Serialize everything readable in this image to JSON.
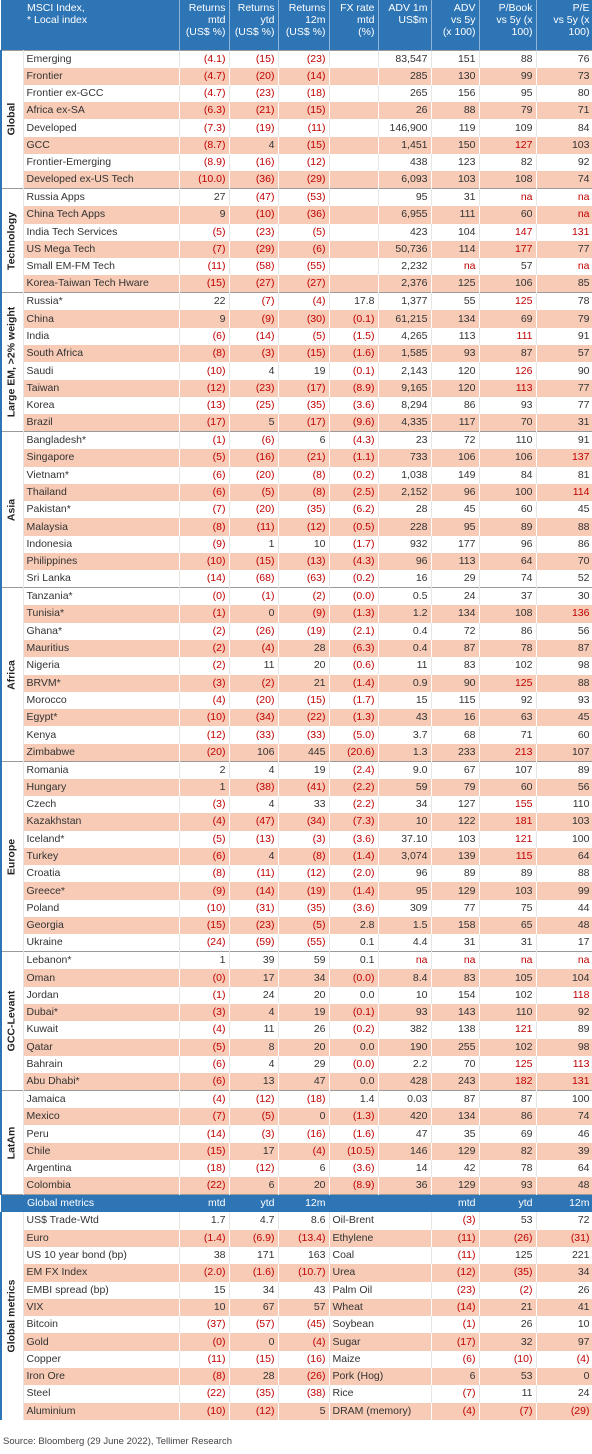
{
  "header": {
    "columns": [
      [
        "MSCI Index,",
        "* Local index"
      ],
      [
        "Returns",
        "mtd",
        "(US$ %)"
      ],
      [
        "Returns",
        "ytd",
        "(US$ %)"
      ],
      [
        "Returns",
        "12m",
        "(US$ %)"
      ],
      [
        "FX rate",
        "mtd",
        "(%)"
      ],
      [
        "ADV 1m",
        "US$m"
      ],
      [
        "ADV",
        "vs 5y",
        "(x 100)"
      ],
      [
        "P/Book",
        "vs 5y (x",
        "100)"
      ],
      [
        "P/E",
        "vs 5y (x",
        "100)"
      ]
    ]
  },
  "groups": [
    {
      "label": "Global",
      "rows": [
        [
          "Emerging",
          "(4.1)",
          "(15)",
          "(23)",
          null,
          "83,547",
          "151",
          "88",
          "76"
        ],
        [
          "Frontier",
          "(4.7)",
          "(20)",
          "(14)",
          null,
          "285",
          "130",
          "99",
          "73"
        ],
        [
          "Frontier ex-GCC",
          "(4.7)",
          "(23)",
          "(18)",
          null,
          "265",
          "156",
          "95",
          "80"
        ],
        [
          "Africa ex-SA",
          "(6.3)",
          "(21)",
          "(15)",
          null,
          "26",
          "88",
          "79",
          "71"
        ],
        [
          "Developed",
          "(7.3)",
          "(19)",
          "(11)",
          null,
          "146,900",
          "119",
          "109",
          "84"
        ],
        [
          "GCC",
          "(8.7)",
          "4",
          "(15)",
          null,
          "1,451",
          "150",
          "127",
          "103"
        ],
        [
          "Frontier-Emerging",
          "(8.9)",
          "(16)",
          "(12)",
          null,
          "438",
          "123",
          "82",
          "92"
        ],
        [
          "Developed ex-US Tech",
          "(10.0)",
          "(36)",
          "(29)",
          null,
          "6,093",
          "103",
          "108",
          "74"
        ]
      ]
    },
    {
      "label": "Technology",
      "rows": [
        [
          "Russia Apps",
          "27",
          "(47)",
          "(53)",
          null,
          "95",
          "31",
          "na",
          "na"
        ],
        [
          "China Tech Apps",
          "9",
          "(10)",
          "(36)",
          null,
          "6,955",
          "111",
          "60",
          "na"
        ],
        [
          "India Tech Services",
          "(5)",
          "(23)",
          "(5)",
          null,
          "423",
          "104",
          "147",
          "131"
        ],
        [
          "US Mega Tech",
          "(7)",
          "(29)",
          "(6)",
          null,
          "50,736",
          "114",
          "177",
          "77"
        ],
        [
          "Small EM-FM Tech",
          "(11)",
          "(58)",
          "(55)",
          null,
          "2,232",
          "na",
          "57",
          "na"
        ],
        [
          "Korea-Taiwan Tech Hware",
          "(15)",
          "(27)",
          "(27)",
          null,
          "2,376",
          "125",
          "106",
          "85"
        ]
      ]
    },
    {
      "label": "Large EM, >2% weight",
      "rows": [
        [
          "Russia*",
          "22",
          "(7)",
          "(4)",
          "17.8",
          "1,377",
          "55",
          "125",
          "78"
        ],
        [
          "China",
          "9",
          "(9)",
          "(30)",
          "(0.1)",
          "61,215",
          "134",
          "69",
          "79"
        ],
        [
          "India",
          "(6)",
          "(14)",
          "(5)",
          "(1.5)",
          "4,265",
          "113",
          "111",
          "91"
        ],
        [
          "South Africa",
          "(8)",
          "(3)",
          "(15)",
          "(1.6)",
          "1,585",
          "93",
          "87",
          "57"
        ],
        [
          "Saudi",
          "(10)",
          "4",
          "19",
          "(0.1)",
          "2,143",
          "120",
          "126",
          "90"
        ],
        [
          "Taiwan",
          "(12)",
          "(23)",
          "(17)",
          "(8.9)",
          "9,165",
          "120",
          "113",
          "77"
        ],
        [
          "Korea",
          "(13)",
          "(25)",
          "(35)",
          "(3.6)",
          "8,294",
          "86",
          "93",
          "77"
        ],
        [
          "Brazil",
          "(17)",
          "5",
          "(17)",
          "(9.6)",
          "4,335",
          "117",
          "70",
          "31"
        ]
      ]
    },
    {
      "label": "Asia",
      "rows": [
        [
          "Bangladesh*",
          "(1)",
          "(6)",
          "6",
          "(4.3)",
          "23",
          "72",
          "110",
          "91"
        ],
        [
          "Singapore",
          "(5)",
          "(16)",
          "(21)",
          "(1.1)",
          "733",
          "106",
          "106",
          "137"
        ],
        [
          "Vietnam*",
          "(6)",
          "(20)",
          "(8)",
          "(0.2)",
          "1,038",
          "149",
          "84",
          "81"
        ],
        [
          "Thailand",
          "(6)",
          "(5)",
          "(8)",
          "(2.5)",
          "2,152",
          "96",
          "100",
          "114"
        ],
        [
          "Pakistan*",
          "(7)",
          "(20)",
          "(35)",
          "(6.2)",
          "28",
          "45",
          "60",
          "45"
        ],
        [
          "Malaysia",
          "(8)",
          "(11)",
          "(12)",
          "(0.5)",
          "228",
          "95",
          "89",
          "88"
        ],
        [
          "Indonesia",
          "(9)",
          "1",
          "10",
          "(1.7)",
          "932",
          "177",
          "96",
          "86"
        ],
        [
          "Philippines",
          "(10)",
          "(15)",
          "(13)",
          "(4.3)",
          "96",
          "113",
          "64",
          "70"
        ],
        [
          "Sri Lanka",
          "(14)",
          "(68)",
          "(63)",
          "(0.2)",
          "16",
          "29",
          "74",
          "52"
        ]
      ]
    },
    {
      "label": "Africa",
      "rows": [
        [
          "Tanzania*",
          "(0)",
          "(1)",
          "(2)",
          "(0.0)",
          "0.5",
          "24",
          "37",
          "30"
        ],
        [
          "Tunisia*",
          "(1)",
          "0",
          "(9)",
          "(1.3)",
          "1.2",
          "134",
          "108",
          "136"
        ],
        [
          "Ghana*",
          "(2)",
          "(26)",
          "(19)",
          "(2.1)",
          "0.4",
          "72",
          "86",
          "56"
        ],
        [
          "Mauritius",
          "(2)",
          "(4)",
          "28",
          "(6.3)",
          "0.4",
          "87",
          "78",
          "87"
        ],
        [
          "Nigeria",
          "(2)",
          "11",
          "20",
          "(0.6)",
          "11",
          "83",
          "102",
          "98"
        ],
        [
          "BRVM*",
          "(3)",
          "(2)",
          "21",
          "(1.4)",
          "0.9",
          "90",
          "125",
          "88"
        ],
        [
          "Morocco",
          "(4)",
          "(20)",
          "(15)",
          "(1.7)",
          "15",
          "115",
          "92",
          "93"
        ],
        [
          "Egypt*",
          "(10)",
          "(34)",
          "(22)",
          "(1.3)",
          "43",
          "16",
          "63",
          "45"
        ],
        [
          "Kenya",
          "(12)",
          "(33)",
          "(33)",
          "(5.0)",
          "3.7",
          "68",
          "71",
          "60"
        ],
        [
          "Zimbabwe",
          "(20)",
          "106",
          "445",
          "(20.6)",
          "1.3",
          "233",
          "213",
          "107"
        ]
      ]
    },
    {
      "label": "Europe",
      "rows": [
        [
          "Romania",
          "2",
          "4",
          "19",
          "(2.4)",
          "9.0",
          "67",
          "107",
          "89"
        ],
        [
          "Hungary",
          "1",
          "(38)",
          "(41)",
          "(2.2)",
          "59",
          "79",
          "60",
          "56"
        ],
        [
          "Czech",
          "(3)",
          "4",
          "33",
          "(2.2)",
          "34",
          "127",
          "155",
          "110"
        ],
        [
          "Kazakhstan",
          "(4)",
          "(47)",
          "(34)",
          "(7.3)",
          "10",
          "122",
          "181",
          "103"
        ],
        [
          "Iceland*",
          "(5)",
          "(13)",
          "(3)",
          "(3.6)",
          "37.10",
          "103",
          "121",
          "100"
        ],
        [
          "Turkey",
          "(6)",
          "4",
          "(8)",
          "(1.4)",
          "3,074",
          "139",
          "115",
          "64"
        ],
        [
          "Croatia",
          "(8)",
          "(11)",
          "(12)",
          "(2.0)",
          "96",
          "89",
          "89",
          "88"
        ],
        [
          "Greece*",
          "(9)",
          "(14)",
          "(19)",
          "(1.4)",
          "95",
          "129",
          "103",
          "99"
        ],
        [
          "Poland",
          "(10)",
          "(31)",
          "(35)",
          "(3.6)",
          "309",
          "77",
          "75",
          "44"
        ],
        [
          "Georgia",
          "(15)",
          "(23)",
          "(5)",
          "2.8",
          "1.5",
          "158",
          "65",
          "48"
        ],
        [
          "Ukraine",
          "(24)",
          "(59)",
          "(55)",
          "0.1",
          "4.4",
          "31",
          "31",
          "17"
        ]
      ]
    },
    {
      "label": "GCC-Levant",
      "rows": [
        [
          "Lebanon*",
          "1",
          "39",
          "59",
          "0.1",
          "na",
          "na",
          "na",
          "na"
        ],
        [
          "Oman",
          "(0)",
          "17",
          "34",
          "(0.0)",
          "8.4",
          "83",
          "105",
          "104"
        ],
        [
          "Jordan",
          "(1)",
          "24",
          "20",
          "0.0",
          "10",
          "154",
          "102",
          "118"
        ],
        [
          "Dubai*",
          "(3)",
          "4",
          "19",
          "(0.1)",
          "93",
          "143",
          "110",
          "92"
        ],
        [
          "Kuwait",
          "(4)",
          "11",
          "26",
          "(0.2)",
          "382",
          "138",
          "121",
          "89"
        ],
        [
          "Qatar",
          "(5)",
          "8",
          "20",
          "0.0",
          "190",
          "255",
          "102",
          "98"
        ],
        [
          "Bahrain",
          "(6)",
          "4",
          "29",
          "(0.0)",
          "2.2",
          "70",
          "125",
          "113"
        ],
        [
          "Abu Dhabi*",
          "(6)",
          "13",
          "47",
          "0.0",
          "428",
          "243",
          "182",
          "131"
        ]
      ]
    },
    {
      "label": "LatAm",
      "rows": [
        [
          "Jamaica",
          "(4)",
          "(12)",
          "(18)",
          "1.4",
          "0.03",
          "87",
          "87",
          "100"
        ],
        [
          "Mexico",
          "(7)",
          "(5)",
          "0",
          "(1.3)",
          "420",
          "134",
          "86",
          "74"
        ],
        [
          "Peru",
          "(14)",
          "(3)",
          "(16)",
          "(1.6)",
          "47",
          "35",
          "69",
          "46"
        ],
        [
          "Chile",
          "(15)",
          "17",
          "(4)",
          "(10.5)",
          "146",
          "129",
          "82",
          "39"
        ],
        [
          "Argentina",
          "(18)",
          "(12)",
          "6",
          "(3.6)",
          "14",
          "42",
          "78",
          "64"
        ],
        [
          "Colombia",
          "(22)",
          "6",
          "20",
          "(8.9)",
          "36",
          "129",
          "93",
          "48"
        ]
      ]
    }
  ],
  "global_metrics": {
    "label": "Global metrics",
    "columns": [
      "mtd",
      "ytd",
      "12m",
      "mtd",
      "ytd",
      "12m"
    ],
    "rows": [
      [
        "US$ Trade-Wtd",
        "1.7",
        "4.7",
        "8.6",
        "Oil-Brent",
        "(3)",
        "53",
        "72"
      ],
      [
        "Euro",
        "(1.4)",
        "(6.9)",
        "(13.4)",
        "Ethylene",
        "(11)",
        "(26)",
        "(31)"
      ],
      [
        "US 10 year bond (bp)",
        "38",
        "171",
        "163",
        "Coal",
        "(11)",
        "125",
        "221"
      ],
      [
        "EM FX Index",
        "(2.0)",
        "(1.6)",
        "(10.7)",
        "Urea",
        "(12)",
        "(35)",
        "34"
      ],
      [
        "EMBI spread (bp)",
        "15",
        "34",
        "43",
        "Palm Oil",
        "(23)",
        "(2)",
        "26"
      ],
      [
        "VIX",
        "10",
        "67",
        "57",
        "Wheat",
        "(14)",
        "21",
        "41"
      ],
      [
        "Bitcoin",
        "(37)",
        "(57)",
        "(45)",
        "Soybean",
        "(1)",
        "26",
        "10"
      ],
      [
        "Gold",
        "(0)",
        "0",
        "(4)",
        "Sugar",
        "(17)",
        "32",
        "97"
      ],
      [
        "Copper",
        "(11)",
        "(15)",
        "(16)",
        "Maize",
        "(6)",
        "(10)",
        "(4)"
      ],
      [
        "Iron Ore",
        "(8)",
        "28",
        "(26)",
        "Pork (Hog)",
        "6",
        "53",
        "0"
      ],
      [
        "Steel",
        "(22)",
        "(35)",
        "(38)",
        "Rice",
        "(7)",
        "11",
        "24"
      ],
      [
        "Aluminium",
        "(10)",
        "(12)",
        "5",
        "DRAM (memory)",
        "(4)",
        "(7)",
        "(29)"
      ]
    ]
  },
  "source": "Source: Bloomberg (29 June 2022), Tellimer Research"
}
